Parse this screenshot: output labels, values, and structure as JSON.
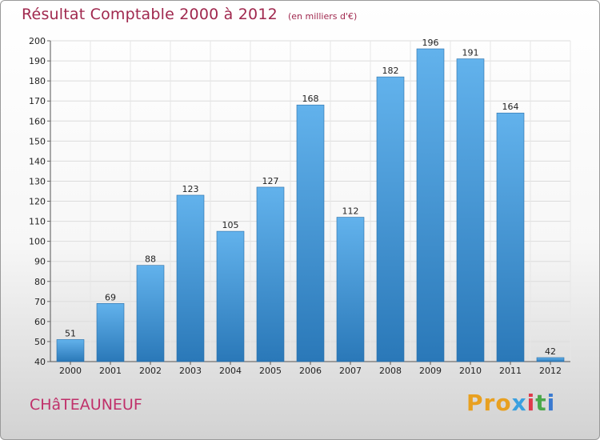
{
  "header": {
    "title": "Résultat Comptable 2000 à 2012",
    "subtitle": "(en milliers d'€)"
  },
  "footer": {
    "city": "CHâTEAUNEUF",
    "logo_letters": [
      "P",
      "r",
      "o",
      "x",
      "i",
      "t",
      "i"
    ],
    "logo_colors": [
      "#e8a020",
      "#e8a020",
      "#e8a020",
      "#3aa0e0",
      "#e03a4a",
      "#4aa84a",
      "#3a7ad0"
    ]
  },
  "colors": {
    "bar_top": "#62b2ec",
    "bar_bottom": "#2a78b8",
    "title": "#a0284e"
  },
  "chart_data": {
    "type": "bar",
    "title": "Résultat Comptable 2000 à 2012",
    "subtitle": "(en milliers d'€)",
    "categories": [
      "2000",
      "2001",
      "2002",
      "2003",
      "2004",
      "2005",
      "2006",
      "2007",
      "2008",
      "2009",
      "2010",
      "2011",
      "2012"
    ],
    "values": [
      51,
      69,
      88,
      123,
      105,
      127,
      168,
      112,
      182,
      196,
      191,
      164,
      42
    ],
    "ylim": [
      40,
      200
    ],
    "yticks": [
      40,
      50,
      60,
      70,
      80,
      90,
      100,
      110,
      120,
      130,
      140,
      150,
      160,
      170,
      180,
      190,
      200
    ],
    "xlabel": "",
    "ylabel": "",
    "grid": true,
    "data_labels": true
  }
}
